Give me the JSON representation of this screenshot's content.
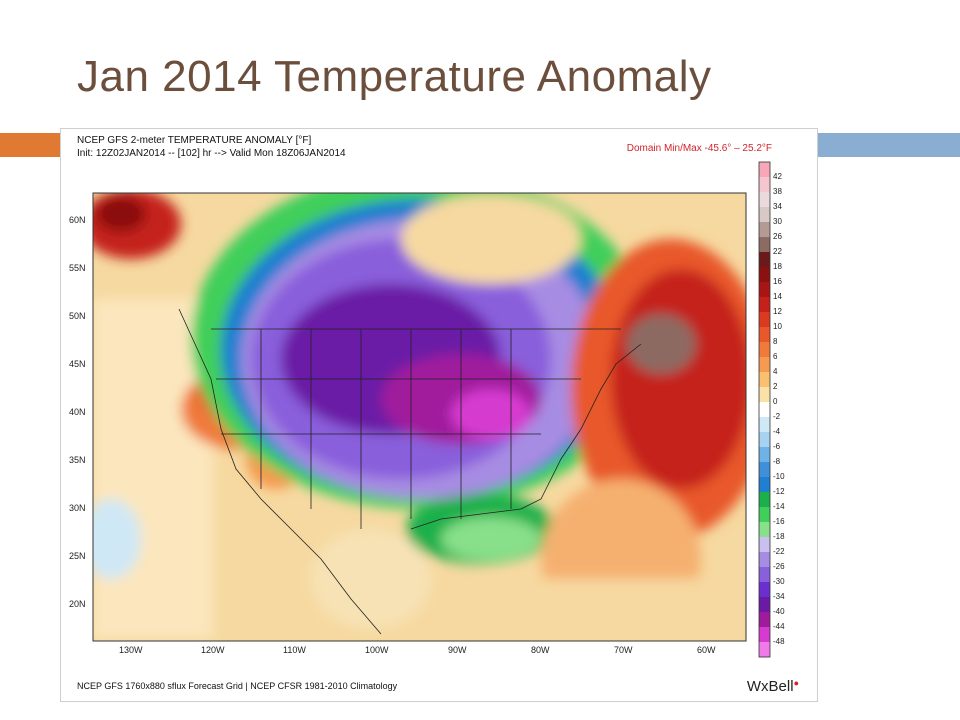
{
  "slide": {
    "title": "Jan 2014 Temperature Anomaly"
  },
  "figure": {
    "header_line1": "NCEP GFS 2-meter TEMPERATURE ANOMALY [°F]",
    "header_line2": "Init: 12Z02JAN2014 -- [102] hr --> Valid Mon 18Z06JAN2014",
    "domain_minmax": "Domain Min/Max -45.6° – 25.2°F",
    "footer": "NCEP GFS 1760x880 sflux Forecast Grid | NCEP CFSR 1981-2010 Climatology",
    "logo_text": "WxBell",
    "lat_labels": [
      "60N",
      "55N",
      "50N",
      "45N",
      "40N",
      "35N",
      "30N",
      "25N",
      "20N"
    ],
    "lon_labels": [
      "130W",
      "120W",
      "110W",
      "100W",
      "90W",
      "80W",
      "70W",
      "60W"
    ],
    "colorbar_labels": [
      "42",
      "38",
      "34",
      "30",
      "26",
      "22",
      "18",
      "16",
      "14",
      "12",
      "10",
      "8",
      "6",
      "4",
      "2",
      "0",
      "-2",
      "-4",
      "-6",
      "-8",
      "-10",
      "-12",
      "-14",
      "-16",
      "-18",
      "-22",
      "-26",
      "-30",
      "-34",
      "-40",
      "-44",
      "-48"
    ],
    "colorbar_colors": [
      "#f7a7b7",
      "#f5c6cf",
      "#eadadd",
      "#d8c8c6",
      "#b39b93",
      "#8c6b62",
      "#6a1a1a",
      "#8b1111",
      "#a91515",
      "#c5211a",
      "#da3a1f",
      "#e8582a",
      "#f07a3a",
      "#f59a50",
      "#f8c070",
      "#fbe0a8",
      "#ffffff",
      "#cfe8f6",
      "#a7d2f0",
      "#6fb2e6",
      "#3f8fd9",
      "#1f7fd0",
      "#1bb04b",
      "#3fcf5a",
      "#88e08a",
      "#c9c0ef",
      "#a78ce3",
      "#8a5fdc",
      "#6b2fd0",
      "#6b1aa6",
      "#a01a9d",
      "#d63ad0",
      "#f07ae8"
    ]
  }
}
